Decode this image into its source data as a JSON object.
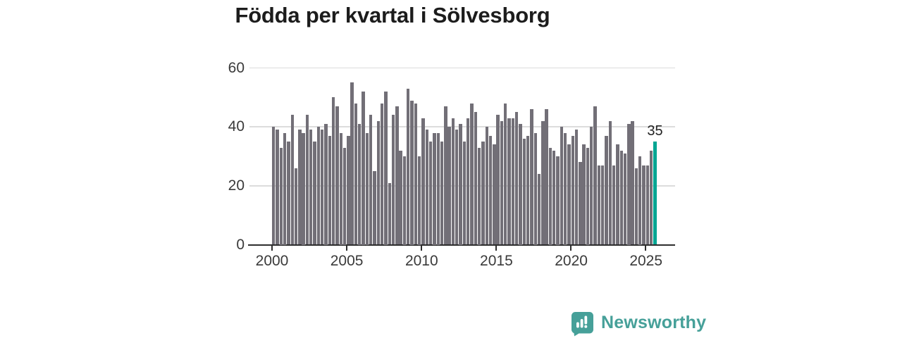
{
  "title": "Födda per kvartal i Sölvesborg",
  "chart_data": {
    "type": "bar",
    "title": "Födda per kvartal i Sölvesborg",
    "x_unit": "quarter",
    "start_year": 2000,
    "start_quarter": 1,
    "values": [
      40,
      39,
      33,
      38,
      35,
      44,
      26,
      39,
      38,
      44,
      39,
      35,
      40,
      39,
      41,
      37,
      50,
      47,
      38,
      33,
      37,
      55,
      48,
      41,
      52,
      38,
      44,
      25,
      42,
      48,
      52,
      21,
      44,
      47,
      32,
      30,
      53,
      49,
      48,
      30,
      43,
      39,
      35,
      38,
      38,
      35,
      47,
      40,
      43,
      39,
      41,
      35,
      43,
      48,
      45,
      33,
      35,
      40,
      37,
      34,
      44,
      42,
      48,
      43,
      43,
      45,
      41,
      36,
      37,
      46,
      38,
      24,
      42,
      46,
      33,
      32,
      30,
      40,
      38,
      34,
      37,
      39,
      28,
      34,
      33,
      40,
      47,
      27,
      27,
      37,
      42,
      27,
      34,
      32,
      31,
      41,
      42,
      26,
      30,
      27,
      27,
      32,
      35
    ],
    "highlight_last": true,
    "highlight_label": "35",
    "ylim": [
      0,
      60
    ],
    "yticks": [
      0,
      20,
      40,
      60
    ],
    "xticks": [
      2000,
      2005,
      2010,
      2015,
      2020,
      2025
    ],
    "grid": true,
    "legend": "none",
    "bar_color": "#726F77",
    "highlight_color": "#00A693",
    "grid_color": "#dcdcdc",
    "axis_color": "#2e2e2e",
    "label_color": "#3a3a3a"
  },
  "branding": {
    "logo_text": "Newsworthy",
    "logo_color": "#46A099"
  }
}
